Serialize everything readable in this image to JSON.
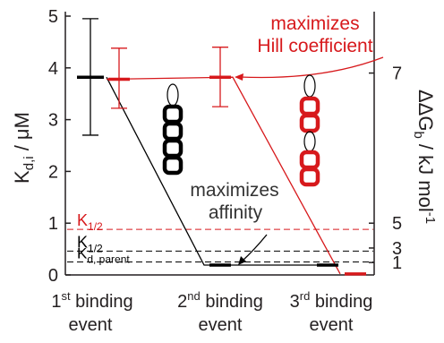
{
  "chart_data": {
    "type": "scatter",
    "categories": [
      "1st binding event",
      "2nd binding event",
      "3rd binding event"
    ],
    "category_labels": [
      {
        "ord": "1",
        "sup": "st",
        "line1": "binding",
        "line2": "event"
      },
      {
        "ord": "2",
        "sup": "nd",
        "line1": "binding",
        "line2": "event"
      },
      {
        "ord": "3",
        "sup": "rd",
        "line1": "binding",
        "line2": "event"
      }
    ],
    "left_axis": {
      "label_main": "K",
      "label_sub": "d,i",
      "label_unit": " / μM",
      "ylim": [
        0,
        5
      ],
      "ticks": [
        0,
        1,
        2,
        3,
        4,
        5
      ],
      "tick_labels": [
        "0",
        "1",
        "2",
        "3",
        "4",
        "5"
      ]
    },
    "right_axis": {
      "label_delta": "ΔΔG",
      "label_sub": "b",
      "label_unit": " / kJ mol",
      "label_sup": "-1",
      "ticks": [
        {
          "label": "7",
          "k": 3.9
        },
        {
          "label": "5",
          "k": 1.0
        },
        {
          "label": "3",
          "k": 0.52
        },
        {
          "label": "1",
          "k": 0.24
        }
      ]
    },
    "series": [
      {
        "color": "#000000",
        "points": [
          {
            "x": 0,
            "y": 3.82,
            "err_low": 2.7,
            "err_high": 4.95
          },
          {
            "x": 1,
            "y": 0.19,
            "err_low": 0.19,
            "err_high": 0.19
          },
          {
            "x": 2,
            "y": 0.19,
            "err_low": 0.19,
            "err_high": 0.19
          }
        ]
      },
      {
        "color": "#d7191c",
        "points": [
          {
            "x": 0,
            "y": 3.78,
            "err_low": 3.22,
            "err_high": 4.38
          },
          {
            "x": 1,
            "y": 3.82,
            "err_low": 3.25,
            "err_high": 4.4
          },
          {
            "x": 2,
            "y": 0.02,
            "err_low": 0.02,
            "err_high": 0.02
          }
        ]
      }
    ],
    "reference_lines": [
      {
        "y": 0.88,
        "color": "#d7191c",
        "label_main": "K",
        "label_sub": "1/2"
      },
      {
        "y": 0.46,
        "color": "#000000",
        "label_main": "K",
        "label_sub": "1/2"
      },
      {
        "y": 0.25,
        "color": "#000000",
        "label_main": "K",
        "label_sub": "d, parent"
      }
    ],
    "annotations": {
      "hill": {
        "line1": "maximizes",
        "line2": "Hill coefficient",
        "color": "#d7191c"
      },
      "affinity": {
        "line1": "maximizes",
        "line2": "affinity",
        "color": "#333333"
      }
    },
    "colors": {
      "black": "#000000",
      "red": "#d7191c",
      "axis": "#231f20"
    }
  }
}
